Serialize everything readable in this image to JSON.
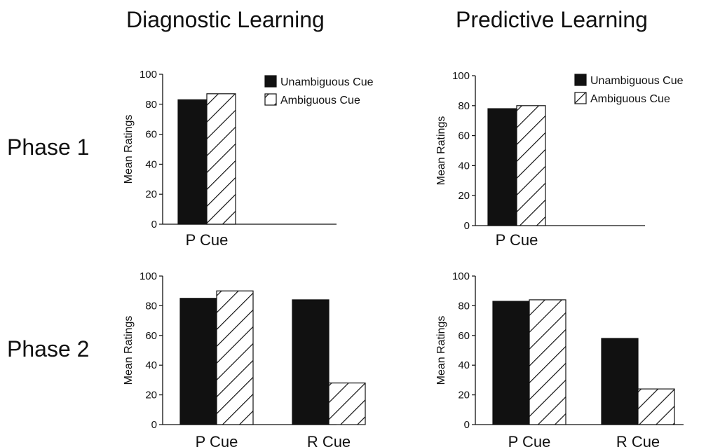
{
  "column_titles": [
    "Diagnostic Learning",
    "Predictive Learning"
  ],
  "row_labels": [
    "Phase 1",
    "Phase 2"
  ],
  "colors": {
    "unambiguous": "#111111",
    "ambiguous_fill": "#ffffff",
    "hatch": "#111111"
  },
  "chart_data": [
    {
      "type": "bar",
      "panel": "Diagnostic Learning - Phase 1",
      "ylabel": "Mean Ratings",
      "ylim": [
        0,
        100
      ],
      "yticks": [
        0,
        20,
        40,
        60,
        80,
        100
      ],
      "categories": [
        "P Cue"
      ],
      "series": [
        {
          "name": "Unambiguous Cue",
          "values": [
            83
          ]
        },
        {
          "name": "Ambiguous Cue",
          "values": [
            87
          ]
        }
      ],
      "legend": "top-right"
    },
    {
      "type": "bar",
      "panel": "Predictive Learning - Phase 1",
      "ylabel": "Mean Ratings",
      "ylim": [
        0,
        100
      ],
      "yticks": [
        0,
        20,
        40,
        60,
        80,
        100
      ],
      "categories": [
        "P Cue"
      ],
      "series": [
        {
          "name": "Unambiguous Cue",
          "values": [
            78
          ]
        },
        {
          "name": "Ambiguous Cue",
          "values": [
            80
          ]
        }
      ],
      "legend": "top-right"
    },
    {
      "type": "bar",
      "panel": "Diagnostic Learning - Phase 2",
      "ylabel": "Mean Ratings",
      "ylim": [
        0,
        100
      ],
      "yticks": [
        0,
        20,
        40,
        60,
        80,
        100
      ],
      "categories": [
        "P Cue",
        "R Cue"
      ],
      "series": [
        {
          "name": "Unambiguous Cue",
          "values": [
            85,
            84
          ]
        },
        {
          "name": "Ambiguous Cue",
          "values": [
            90,
            28
          ]
        }
      ]
    },
    {
      "type": "bar",
      "panel": "Predictive Learning - Phase 2",
      "ylabel": "Mean Ratings",
      "ylim": [
        0,
        100
      ],
      "yticks": [
        0,
        20,
        40,
        60,
        80,
        100
      ],
      "categories": [
        "P Cue",
        "R Cue"
      ],
      "series": [
        {
          "name": "Unambiguous Cue",
          "values": [
            83,
            58
          ]
        },
        {
          "name": "Ambiguous Cue",
          "values": [
            84,
            24
          ]
        }
      ]
    }
  ]
}
